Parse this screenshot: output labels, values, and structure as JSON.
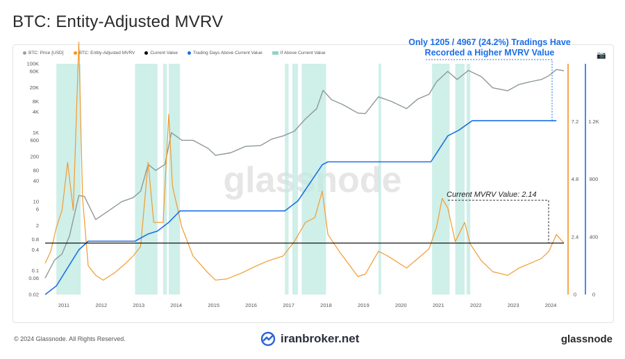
{
  "page": {
    "title": "BTC: Entity-Adjusted MVRV",
    "copyright": "© 2024 Glassnode. All Rights Reserved.",
    "brand_text": "iranbroker.net",
    "logo_text": "glassnode",
    "watermark": "glassnode",
    "annotation_top": "Only 1205 / 4967 (24.2%) Tradings Have Recorded a Higher MVRV Value",
    "annotation_current": "Current MVRV Value: 2.14"
  },
  "legend": [
    {
      "label": "BTC: Price [USD]",
      "color": "#9e9e9e"
    },
    {
      "label": "BTC: Entity-Adjusted MVRV",
      "color": "#f7931a"
    },
    {
      "label": "Current Value",
      "color": "#000000"
    },
    {
      "label": "Trading Days Above Current Value",
      "color": "#1a6ee8"
    },
    {
      "label": "If Above Current Value",
      "color": "#8fd3c9"
    }
  ],
  "chart_data": {
    "type": "line",
    "x_ticks": [
      "2011",
      "2012",
      "2013",
      "2014",
      "2015",
      "2016",
      "2017",
      "2018",
      "2019",
      "2020",
      "2021",
      "2022",
      "2023",
      "2024"
    ],
    "left_axis_log_ticks": [
      "100K",
      "60K",
      "20K",
      "8K",
      "4K",
      "1K",
      "600",
      "200",
      "80",
      "40",
      "10",
      "6",
      "2",
      "0.8",
      "0.4",
      "0.1",
      "0.06",
      "0.02"
    ],
    "mvrv_axis_ticks": [
      "0",
      "2.4",
      "4.8",
      "7.2"
    ],
    "days_axis_ticks": [
      "0",
      "400",
      "800",
      "1.2K"
    ],
    "current_mvrv": 2.14,
    "days_above": 1205,
    "total_days": 4967,
    "price_series": {
      "name": "BTC: Price [USD]",
      "x": [
        2010.55,
        2010.8,
        2011.0,
        2011.2,
        2011.45,
        2011.6,
        2011.9,
        2012.2,
        2012.6,
        2012.9,
        2013.1,
        2013.3,
        2013.5,
        2013.75,
        2013.92,
        2014.2,
        2014.5,
        2014.9,
        2015.1,
        2015.5,
        2015.9,
        2016.3,
        2016.6,
        2016.9,
        2017.2,
        2017.5,
        2017.8,
        2017.97,
        2018.2,
        2018.5,
        2018.9,
        2019.1,
        2019.45,
        2019.8,
        2020.2,
        2020.5,
        2020.8,
        2021.0,
        2021.3,
        2021.55,
        2021.85,
        2022.2,
        2022.5,
        2022.9,
        2023.2,
        2023.5,
        2023.8,
        2024.0,
        2024.2,
        2024.4
      ],
      "y": [
        0.06,
        0.2,
        0.3,
        1.0,
        15,
        14,
        3,
        5,
        10,
        13,
        20,
        120,
        80,
        120,
        1000,
        600,
        600,
        350,
        220,
        260,
        400,
        420,
        650,
        800,
        1100,
        2500,
        5000,
        17000,
        9000,
        6500,
        3700,
        3600,
        11000,
        8000,
        5000,
        9500,
        13000,
        30000,
        60000,
        35000,
        64000,
        42000,
        20000,
        16500,
        25000,
        30000,
        35000,
        45000,
        68000,
        63000
      ]
    },
    "mvrv_series": {
      "name": "BTC: Entity-Adjusted MVRV",
      "x": [
        2010.55,
        2010.7,
        2010.85,
        2011.0,
        2011.15,
        2011.3,
        2011.45,
        2011.55,
        2011.7,
        2011.9,
        2012.1,
        2012.4,
        2012.7,
        2012.9,
        2013.1,
        2013.3,
        2013.45,
        2013.7,
        2013.85,
        2013.95,
        2014.2,
        2014.5,
        2014.9,
        2015.1,
        2015.4,
        2015.8,
        2016.2,
        2016.5,
        2016.9,
        2017.2,
        2017.5,
        2017.75,
        2017.95,
        2018.1,
        2018.4,
        2018.9,
        2019.1,
        2019.45,
        2019.7,
        2020.2,
        2020.5,
        2020.8,
        2021.0,
        2021.15,
        2021.3,
        2021.5,
        2021.75,
        2021.9,
        2022.2,
        2022.5,
        2022.9,
        2023.2,
        2023.5,
        2023.8,
        2024.0,
        2024.2,
        2024.4
      ],
      "y": [
        1.3,
        1.8,
        2.8,
        3.5,
        5.5,
        3.5,
        10.5,
        4.0,
        1.2,
        0.8,
        0.6,
        0.9,
        1.3,
        1.6,
        2.0,
        5.5,
        3.0,
        3.0,
        7.5,
        4.5,
        2.8,
        1.6,
        0.9,
        0.6,
        0.65,
        0.9,
        1.2,
        1.4,
        1.6,
        2.2,
        3.0,
        3.2,
        4.3,
        2.5,
        1.8,
        0.75,
        0.85,
        1.8,
        1.6,
        1.1,
        1.5,
        1.9,
        2.8,
        4.0,
        3.6,
        2.2,
        3.0,
        2.1,
        1.4,
        0.95,
        0.8,
        1.1,
        1.3,
        1.5,
        1.8,
        2.5,
        2.14
      ]
    },
    "days_above_series": {
      "name": "Trading Days Above Current Value",
      "x": [
        2010.55,
        2010.85,
        2011.45,
        2011.7,
        2012.95,
        2013.3,
        2013.55,
        2013.85,
        2014.15,
        2016.95,
        2017.3,
        2017.95,
        2018.1,
        2020.85,
        2021.3,
        2021.6,
        2021.95,
        2024.2
      ],
      "y": [
        0,
        60,
        310,
        370,
        370,
        420,
        440,
        500,
        580,
        580,
        650,
        900,
        920,
        920,
        1100,
        1140,
        1205,
        1205
      ]
    },
    "shaded_ranges": [
      [
        2010.85,
        2011.5
      ],
      [
        2012.95,
        2013.55
      ],
      [
        2013.7,
        2013.8
      ],
      [
        2013.85,
        2014.15
      ],
      [
        2016.95,
        2017.05
      ],
      [
        2017.15,
        2017.3
      ],
      [
        2017.4,
        2018.05
      ],
      [
        2019.45,
        2019.52
      ],
      [
        2020.88,
        2021.35
      ],
      [
        2021.5,
        2021.75
      ],
      [
        2021.8,
        2021.9
      ]
    ]
  }
}
